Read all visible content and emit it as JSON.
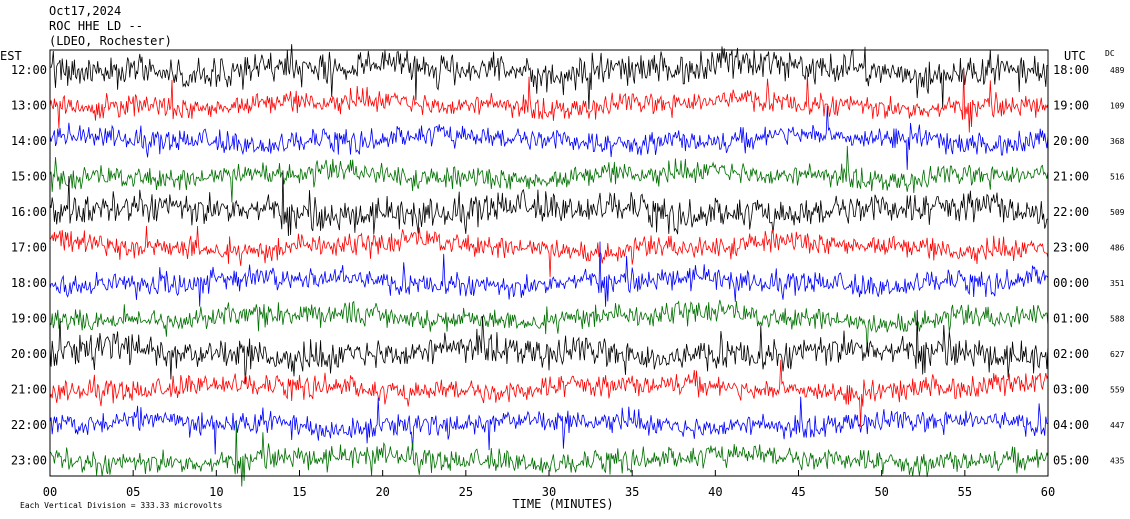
{
  "header": {
    "date": "Oct17,2024",
    "station": "ROC HHE LD --",
    "location": "(LDEO, Rochester)"
  },
  "chart_data": {
    "type": "line",
    "left_axis_label": "EST",
    "right_axis_label": "UTC",
    "dc_label": "DC",
    "xlabel": "TIME (MINUTES)",
    "x_ticks": [
      "00",
      "05",
      "10",
      "15",
      "20",
      "25",
      "30",
      "35",
      "40",
      "45",
      "50",
      "55",
      "60"
    ],
    "xlim": [
      0,
      60
    ],
    "rows": [
      {
        "est": "12:00",
        "utc": "18:00",
        "dc": "489",
        "color": "#000000"
      },
      {
        "est": "13:00",
        "utc": "19:00",
        "dc": "109",
        "color": "#ff0000"
      },
      {
        "est": "14:00",
        "utc": "20:00",
        "dc": "368",
        "color": "#0000ff"
      },
      {
        "est": "15:00",
        "utc": "21:00",
        "dc": "516",
        "color": "#007000"
      },
      {
        "est": "16:00",
        "utc": "22:00",
        "dc": "509",
        "color": "#000000"
      },
      {
        "est": "17:00",
        "utc": "23:00",
        "dc": "486",
        "color": "#ff0000"
      },
      {
        "est": "18:00",
        "utc": "00:00",
        "dc": "351",
        "color": "#0000ff"
      },
      {
        "est": "19:00",
        "utc": "01:00",
        "dc": "588",
        "color": "#007000"
      },
      {
        "est": "20:00",
        "utc": "02:00",
        "dc": "627",
        "color": "#000000"
      },
      {
        "est": "21:00",
        "utc": "03:00",
        "dc": "559",
        "color": "#ff0000"
      },
      {
        "est": "22:00",
        "utc": "04:00",
        "dc": "447",
        "color": "#0000ff"
      },
      {
        "est": "23:00",
        "utc": "05:00",
        "dc": "435",
        "color": "#007000"
      }
    ],
    "footer_note": "Each Vertical Division =  333.33 microvolts"
  }
}
